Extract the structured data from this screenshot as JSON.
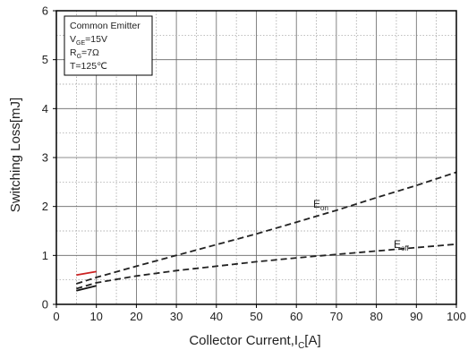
{
  "chart_data": {
    "type": "line",
    "xlabel": "Collector Current,I",
    "xlabel_sub": "C",
    "xlabel_unit": "[A]",
    "ylabel": "Switching Loss[mJ]",
    "xlim": [
      0,
      100
    ],
    "ylim": [
      0,
      6
    ],
    "xticks": [
      "0",
      "10",
      "20",
      "30",
      "40",
      "50",
      "60",
      "70",
      "80",
      "90",
      "100"
    ],
    "yticks": [
      "0",
      "1",
      "2",
      "3",
      "4",
      "5",
      "6"
    ],
    "grid": true,
    "legend": {
      "placement": "top-left",
      "lines": [
        {
          "main": "Common Emitter",
          "sub": "",
          "rest": ""
        },
        {
          "main": "V",
          "sub": "GE",
          "rest": "=15V"
        },
        {
          "main": "R",
          "sub": "G",
          "rest": "=7Ω"
        },
        {
          "main": "T=125℃",
          "sub": "",
          "rest": ""
        }
      ]
    },
    "series": [
      {
        "name": "E_on",
        "label_main": "E",
        "label_sub": "on",
        "x": [
          5,
          10,
          20,
          30,
          40,
          50,
          60,
          70,
          80,
          90,
          100
        ],
        "y": [
          0.42,
          0.55,
          0.78,
          1.0,
          1.22,
          1.44,
          1.68,
          1.92,
          2.18,
          2.43,
          2.7
        ],
        "style": "dashed",
        "color": "#222222"
      },
      {
        "name": "E_off",
        "label_main": "E",
        "label_sub": "off",
        "x": [
          5,
          10,
          20,
          30,
          40,
          50,
          60,
          70,
          80,
          90,
          100
        ],
        "y": [
          0.32,
          0.44,
          0.58,
          0.69,
          0.78,
          0.87,
          0.95,
          1.02,
          1.09,
          1.16,
          1.23
        ],
        "style": "dashed",
        "color": "#222222"
      }
    ],
    "annotations": [
      {
        "kind": "segment",
        "x": [
          5,
          10
        ],
        "y": [
          0.6,
          0.67
        ],
        "color": "#cc2222"
      },
      {
        "kind": "segment",
        "x": [
          5,
          10
        ],
        "y": [
          0.28,
          0.38
        ],
        "color": "#111111"
      }
    ]
  }
}
